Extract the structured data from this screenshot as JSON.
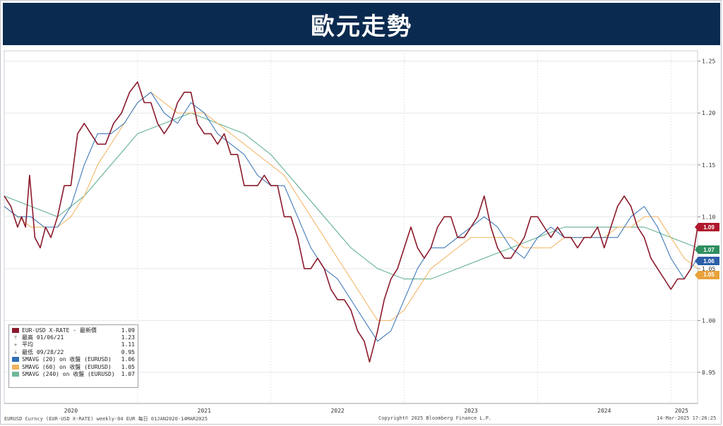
{
  "banner": {
    "title": "歐元走勢"
  },
  "chart_data": {
    "type": "line",
    "title": "",
    "ylim": [
      0.92,
      1.26
    ],
    "y_ticks": [
      "1.25",
      "1.20",
      "1.15",
      "1.10",
      "1.05",
      "1.00",
      "0.95"
    ],
    "x_ticks": [
      "2020",
      "2021",
      "2022",
      "2023",
      "2024",
      "2025"
    ],
    "grid": true,
    "series": [
      {
        "name": "EUR-USD X-RATE - 最新價",
        "color": "#8b1a2b",
        "x": [
          2020.0,
          2020.05,
          2020.1,
          2020.13,
          2020.16,
          2020.19,
          2020.23,
          2020.27,
          2020.31,
          2020.35,
          2020.4,
          2020.45,
          2020.5,
          2020.55,
          2020.6,
          2020.65,
          2020.7,
          2020.76,
          2020.82,
          2020.88,
          2020.94,
          2021.0,
          2021.05,
          2021.1,
          2021.15,
          2021.2,
          2021.25,
          2021.3,
          2021.35,
          2021.4,
          2021.45,
          2021.5,
          2021.55,
          2021.6,
          2021.65,
          2021.7,
          2021.75,
          2021.8,
          2021.85,
          2021.9,
          2021.95,
          2022.0,
          2022.05,
          2022.1,
          2022.15,
          2022.2,
          2022.25,
          2022.3,
          2022.35,
          2022.4,
          2022.45,
          2022.5,
          2022.55,
          2022.6,
          2022.65,
          2022.7,
          2022.74,
          2022.8,
          2022.85,
          2022.9,
          2022.95,
          2023.0,
          2023.05,
          2023.1,
          2023.15,
          2023.2,
          2023.25,
          2023.3,
          2023.35,
          2023.4,
          2023.45,
          2023.5,
          2023.55,
          2023.6,
          2023.65,
          2023.7,
          2023.75,
          2023.8,
          2023.85,
          2023.9,
          2023.95,
          2024.0,
          2024.05,
          2024.1,
          2024.15,
          2024.2,
          2024.25,
          2024.3,
          2024.35,
          2024.4,
          2024.45,
          2024.5,
          2024.55,
          2024.6,
          2024.65,
          2024.7,
          2024.75,
          2024.8,
          2024.85,
          2024.9,
          2024.95,
          2025.0,
          2025.05,
          2025.1,
          2025.15,
          2025.2
        ],
        "y": [
          1.12,
          1.11,
          1.09,
          1.1,
          1.09,
          1.14,
          1.08,
          1.07,
          1.09,
          1.08,
          1.1,
          1.13,
          1.13,
          1.18,
          1.19,
          1.18,
          1.17,
          1.17,
          1.19,
          1.2,
          1.22,
          1.23,
          1.21,
          1.21,
          1.19,
          1.18,
          1.19,
          1.21,
          1.22,
          1.22,
          1.19,
          1.18,
          1.18,
          1.17,
          1.18,
          1.16,
          1.16,
          1.13,
          1.13,
          1.13,
          1.14,
          1.13,
          1.13,
          1.1,
          1.1,
          1.08,
          1.05,
          1.05,
          1.06,
          1.05,
          1.03,
          1.02,
          1.02,
          1.01,
          0.99,
          0.98,
          0.96,
          0.99,
          1.02,
          1.04,
          1.05,
          1.07,
          1.09,
          1.07,
          1.06,
          1.07,
          1.09,
          1.1,
          1.1,
          1.08,
          1.08,
          1.09,
          1.1,
          1.12,
          1.09,
          1.07,
          1.06,
          1.06,
          1.07,
          1.08,
          1.1,
          1.1,
          1.09,
          1.08,
          1.09,
          1.08,
          1.08,
          1.07,
          1.08,
          1.08,
          1.09,
          1.07,
          1.09,
          1.11,
          1.12,
          1.11,
          1.09,
          1.08,
          1.06,
          1.05,
          1.04,
          1.03,
          1.04,
          1.04,
          1.05,
          1.09
        ]
      },
      {
        "name": "SMAVG (20) on 收盤 (EURUSD)",
        "color": "#2f6fb3",
        "x": [
          2020.0,
          2020.1,
          2020.2,
          2020.3,
          2020.4,
          2020.5,
          2020.6,
          2020.7,
          2020.8,
          2020.9,
          2021.0,
          2021.1,
          2021.2,
          2021.3,
          2021.4,
          2021.5,
          2021.6,
          2021.7,
          2021.8,
          2021.9,
          2022.0,
          2022.1,
          2022.2,
          2022.3,
          2022.4,
          2022.5,
          2022.6,
          2022.7,
          2022.8,
          2022.9,
          2023.0,
          2023.1,
          2023.2,
          2023.3,
          2023.4,
          2023.5,
          2023.6,
          2023.7,
          2023.8,
          2023.9,
          2024.0,
          2024.1,
          2024.2,
          2024.3,
          2024.4,
          2024.5,
          2024.6,
          2024.7,
          2024.8,
          2024.9,
          2025.0,
          2025.1,
          2025.2
        ],
        "y": [
          1.11,
          1.1,
          1.1,
          1.09,
          1.09,
          1.11,
          1.15,
          1.18,
          1.18,
          1.19,
          1.21,
          1.22,
          1.2,
          1.19,
          1.21,
          1.2,
          1.18,
          1.17,
          1.16,
          1.14,
          1.13,
          1.13,
          1.1,
          1.07,
          1.05,
          1.04,
          1.02,
          1.0,
          0.98,
          0.99,
          1.02,
          1.05,
          1.07,
          1.07,
          1.08,
          1.09,
          1.1,
          1.09,
          1.07,
          1.06,
          1.08,
          1.09,
          1.08,
          1.08,
          1.08,
          1.08,
          1.08,
          1.1,
          1.11,
          1.09,
          1.06,
          1.04,
          1.06
        ]
      },
      {
        "name": "SMAVG (60) on 收盤 (EURUSD)",
        "color": "#f2b25e",
        "x": [
          2020.0,
          2020.1,
          2020.2,
          2020.3,
          2020.4,
          2020.5,
          2020.6,
          2020.7,
          2020.8,
          2020.9,
          2021.0,
          2021.1,
          2021.2,
          2021.3,
          2021.4,
          2021.5,
          2021.6,
          2021.7,
          2021.8,
          2021.9,
          2022.0,
          2022.1,
          2022.2,
          2022.3,
          2022.4,
          2022.5,
          2022.6,
          2022.7,
          2022.8,
          2022.9,
          2023.0,
          2023.1,
          2023.2,
          2023.3,
          2023.4,
          2023.5,
          2023.6,
          2023.7,
          2023.8,
          2023.9,
          2024.0,
          2024.1,
          2024.2,
          2024.3,
          2024.4,
          2024.5,
          2024.6,
          2024.7,
          2024.8,
          2024.9,
          2025.0,
          2025.1,
          2025.2
        ],
        "y": [
          1.11,
          1.1,
          1.09,
          1.09,
          1.09,
          1.1,
          1.12,
          1.15,
          1.17,
          1.19,
          1.21,
          1.22,
          1.21,
          1.2,
          1.2,
          1.2,
          1.19,
          1.18,
          1.17,
          1.16,
          1.15,
          1.14,
          1.12,
          1.1,
          1.08,
          1.06,
          1.04,
          1.02,
          1.0,
          1.0,
          1.01,
          1.03,
          1.05,
          1.06,
          1.07,
          1.08,
          1.08,
          1.08,
          1.08,
          1.07,
          1.07,
          1.07,
          1.08,
          1.08,
          1.08,
          1.08,
          1.09,
          1.09,
          1.1,
          1.1,
          1.08,
          1.06,
          1.05
        ]
      },
      {
        "name": "SMAVG (240) on 收盤 (EURUSD)",
        "color": "#6fb89a",
        "x": [
          2020.0,
          2020.2,
          2020.4,
          2020.6,
          2020.8,
          2021.0,
          2021.2,
          2021.4,
          2021.6,
          2021.8,
          2022.0,
          2022.2,
          2022.4,
          2022.6,
          2022.8,
          2023.0,
          2023.2,
          2023.4,
          2023.6,
          2023.8,
          2024.0,
          2024.2,
          2024.4,
          2024.6,
          2024.8,
          2025.0,
          2025.2
        ],
        "y": [
          1.12,
          1.11,
          1.1,
          1.12,
          1.15,
          1.18,
          1.19,
          1.2,
          1.19,
          1.18,
          1.16,
          1.13,
          1.1,
          1.07,
          1.05,
          1.04,
          1.04,
          1.05,
          1.06,
          1.07,
          1.08,
          1.09,
          1.09,
          1.09,
          1.09,
          1.08,
          1.07
        ]
      }
    ],
    "legend": {
      "placement": "bottom-left",
      "rows": [
        {
          "sym": "sq",
          "color": "#8b1a2b",
          "label": "EUR-USD X-RATE - 最新價",
          "value": "1.09"
        },
        {
          "sym": "hi",
          "color": "#555555",
          "label": "最高 01/06/21",
          "value": "1.23"
        },
        {
          "sym": "avg",
          "color": "#555555",
          "label": "平均",
          "value": "1.11"
        },
        {
          "sym": "lo",
          "color": "#555555",
          "label": "最低 09/28/22",
          "value": "0.95"
        },
        {
          "sym": "sq",
          "color": "#2f6fb3",
          "label": "SMAVG (20) on 收盤 (EURUSD)",
          "value": "1.06"
        },
        {
          "sym": "sq",
          "color": "#f2b25e",
          "label": "SMAVG (60) on 收盤 (EURUSD)",
          "value": "1.05"
        },
        {
          "sym": "sq",
          "color": "#6fb89a",
          "label": "SMAVG (240) on 收盤 (EURUSD)",
          "value": "1.07"
        }
      ]
    },
    "badges": [
      {
        "value": "1.09",
        "y": 1.09,
        "color": "#b0182c"
      },
      {
        "value": "1.07",
        "y": 1.07,
        "color": "#2f8f5f"
      },
      {
        "value": "1.06",
        "y": 1.06,
        "color": "#2c5fa8"
      },
      {
        "value": "1.05",
        "y": 1.05,
        "color": "#e9a23b"
      }
    ]
  },
  "footer": {
    "left": "EURUSD Curncy (EUR-USD X-RATE) weekly-04 EUR  每日 01JAN2020-14MAR2025",
    "mid": "Copyright© 2025 Bloomberg Finance L.P.",
    "right": "14-Mar-2025 17:26:25"
  }
}
